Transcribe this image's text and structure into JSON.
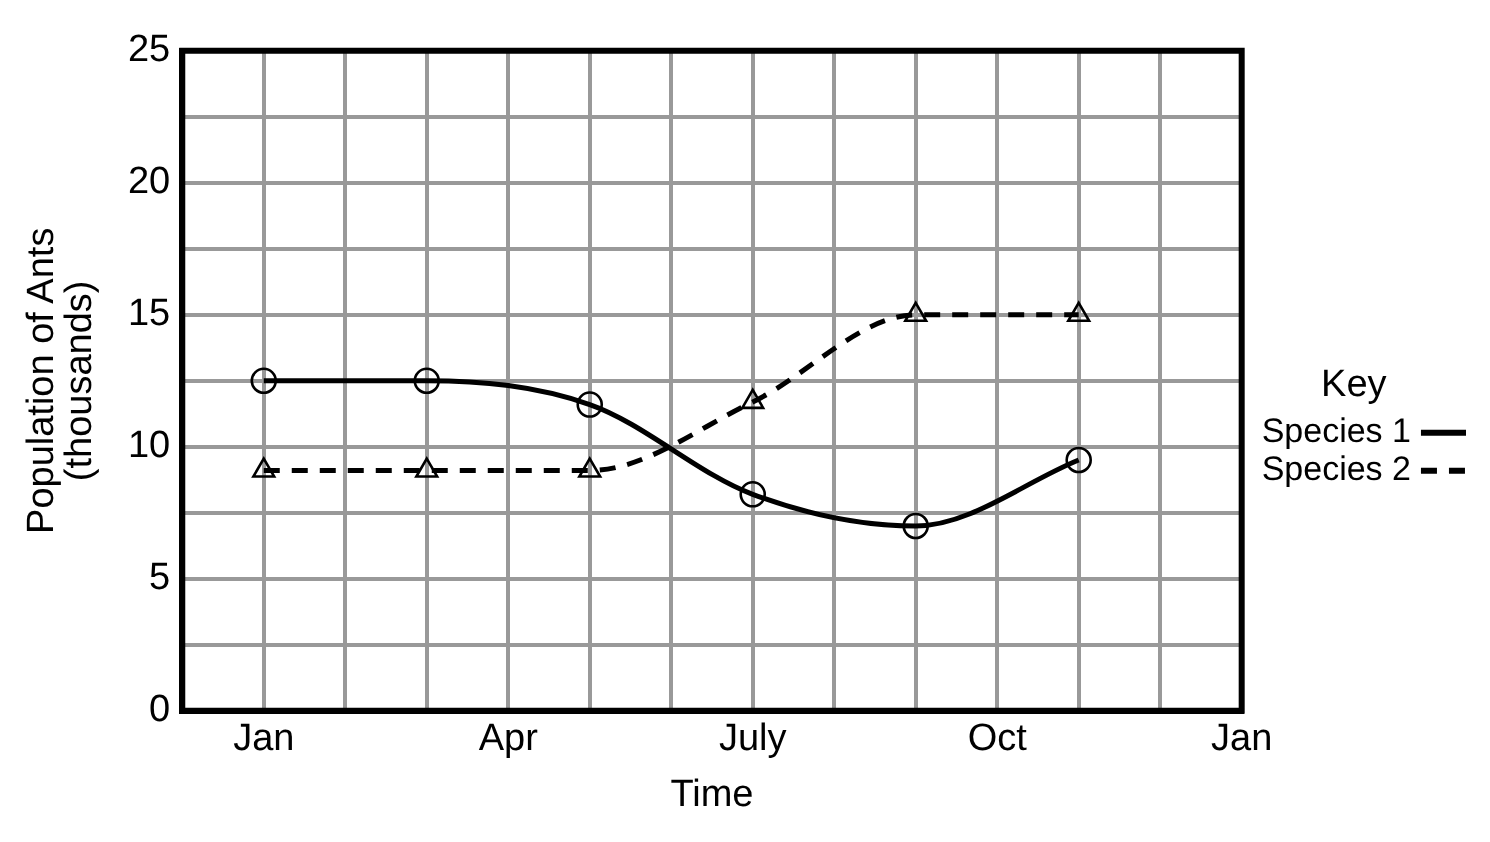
{
  "chart_data": {
    "type": "line",
    "xlabel": "Time",
    "ylabel": "Population of Ants\n(thousands)",
    "legend_title": "Key",
    "legend": "right",
    "grid": true,
    "categories": [
      null,
      "Jan",
      null,
      null,
      "Apr",
      null,
      null,
      "July",
      null,
      null,
      "Oct",
      null,
      null,
      "Jan"
    ],
    "ylim": [
      0,
      25
    ],
    "yticks": [
      0,
      {
        "value": 2.5,
        "label": null
      },
      5,
      {
        "value": 7.5,
        "label": null
      },
      10,
      {
        "value": 12.5,
        "label": null
      },
      15,
      {
        "value": 17.5,
        "label": null
      },
      20,
      {
        "value": 22.5,
        "label": null
      },
      25
    ],
    "series": [
      {
        "name": "Species 1",
        "color": "#000000",
        "marker": "circle",
        "line_style": "solid",
        "values": [
          null,
          12.5,
          null,
          12.5,
          null,
          11.6,
          null,
          8.2,
          null,
          7.0,
          null,
          9.5,
          null,
          null
        ]
      },
      {
        "name": "Species 2",
        "color": "#000000",
        "marker": "triangle",
        "line_style": "dashed",
        "values": [
          null,
          9.1,
          null,
          9.1,
          null,
          9.1,
          null,
          11.7,
          null,
          15.0,
          null,
          15.0,
          null,
          null
        ]
      }
    ]
  }
}
